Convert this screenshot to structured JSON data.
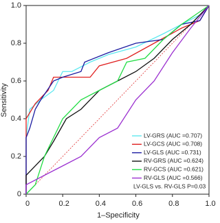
{
  "chart_data": {
    "type": "line",
    "x_label": "1–Specificity",
    "y_label": "Sensitivity",
    "xlim": [
      0,
      1
    ],
    "ylim": [
      0,
      1
    ],
    "xticks": [
      0,
      0.2,
      0.4,
      0.6,
      0.8,
      {
        "value": 1,
        "label": "1.0"
      }
    ],
    "yticks": [
      0,
      0.2,
      0.4,
      0.6,
      0.8,
      {
        "value": 1,
        "label": "1.0"
      }
    ],
    "annotation": "LV-GLS vs. RV-GLS P=0.03",
    "series": [
      {
        "name": "LV-GRS (AUC =0.707)",
        "color": "#5ee8f0",
        "x": [
          0,
          0,
          0.02,
          0.08,
          0.15,
          0.2,
          0.25,
          0.35,
          0.45,
          0.6,
          0.75,
          0.85,
          0.95,
          1
        ],
        "values": [
          0,
          0.3,
          0.45,
          0.5,
          0.55,
          0.65,
          0.65,
          0.7,
          0.74,
          0.78,
          0.85,
          0.9,
          0.95,
          1
        ]
      },
      {
        "name": "LV-GCS (AUC =0.708)",
        "color": "#e02020",
        "x": [
          0,
          0,
          0.05,
          0.12,
          0.15,
          0.2,
          0.35,
          0.4,
          0.55,
          0.7,
          0.85,
          0.95,
          1
        ],
        "values": [
          0,
          0.4,
          0.48,
          0.55,
          0.62,
          0.62,
          0.62,
          0.68,
          0.72,
          0.8,
          0.88,
          0.92,
          1
        ]
      },
      {
        "name": "LV-GLS (AUC =0.731)",
        "color": "#1a1aa0",
        "x": [
          0,
          0,
          0.02,
          0.05,
          0.08,
          0.15,
          0.2,
          0.3,
          0.32,
          0.45,
          0.6,
          0.75,
          0.85,
          0.95,
          1
        ],
        "values": [
          0,
          0.3,
          0.35,
          0.45,
          0.5,
          0.6,
          0.62,
          0.65,
          0.7,
          0.75,
          0.8,
          0.82,
          0.9,
          0.92,
          1
        ]
      },
      {
        "name": "RV-GRS (AUC =0.624)",
        "color": "#111111",
        "x": [
          0,
          0,
          0.1,
          0.15,
          0.22,
          0.3,
          0.4,
          0.5,
          0.6,
          0.7,
          0.8,
          0.9,
          1
        ],
        "values": [
          0,
          0.1,
          0.2,
          0.28,
          0.4,
          0.45,
          0.55,
          0.6,
          0.65,
          0.72,
          0.82,
          0.9,
          1
        ]
      },
      {
        "name": "RV-GCS (AUC =0.621)",
        "color": "#22dd44",
        "x": [
          0,
          0.05,
          0.1,
          0.2,
          0.3,
          0.4,
          0.5,
          0.55,
          0.65,
          0.75,
          0.85,
          1
        ],
        "values": [
          0,
          0.05,
          0.2,
          0.4,
          0.5,
          0.55,
          0.6,
          0.7,
          0.72,
          0.82,
          0.9,
          1
        ]
      },
      {
        "name": "RV-GLS (AUC =0.566)",
        "color": "#9b30d0",
        "x": [
          0,
          0,
          0.1,
          0.2,
          0.3,
          0.4,
          0.5,
          0.6,
          0.7,
          0.8,
          0.9,
          1
        ],
        "values": [
          0,
          0.05,
          0.1,
          0.15,
          0.2,
          0.3,
          0.35,
          0.5,
          0.6,
          0.75,
          0.88,
          1
        ]
      }
    ]
  }
}
